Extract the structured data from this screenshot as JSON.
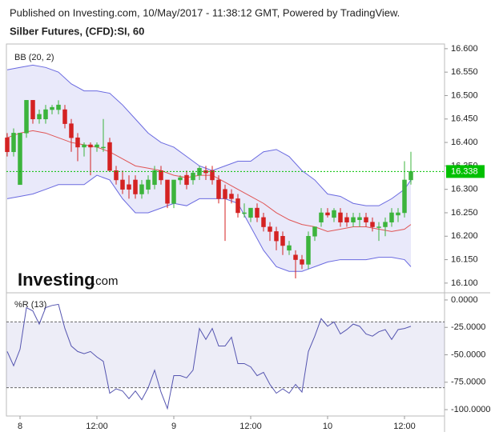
{
  "header": {
    "published": "Published on Investing.com, 10/May/2017 - 11:38:12 GMT, Powered by TradingView.",
    "symbol": "Silber Futures, (CFD):SI, 60"
  },
  "watermark": {
    "brand": "Investing",
    "suffix": ".com"
  },
  "chart_data": [
    {
      "type": "candlestick",
      "legend": "BB (20, 2)",
      "up_color": "#3cb43c",
      "down_color": "#d42222",
      "x": [
        -2,
        -1,
        0,
        1,
        2,
        3,
        4,
        5,
        6,
        7,
        8,
        9,
        10,
        11,
        12,
        13,
        14,
        15,
        16,
        17,
        18,
        19,
        20,
        21,
        22,
        23,
        24,
        25,
        26,
        27,
        28,
        29,
        30,
        31,
        32,
        33,
        34,
        35,
        36,
        37,
        38,
        39,
        40,
        41,
        42,
        43,
        44,
        45,
        46,
        47,
        48,
        49,
        50,
        51,
        52,
        53,
        54,
        55,
        56,
        57,
        58,
        59,
        60,
        61
      ],
      "open": [
        16.41,
        16.38,
        16.31,
        16.42,
        16.49,
        16.45,
        16.45,
        16.47,
        16.47,
        16.47,
        16.44,
        16.41,
        16.39,
        16.395,
        16.39,
        16.39,
        16.4,
        16.34,
        16.32,
        16.31,
        16.32,
        16.29,
        16.3,
        16.31,
        16.34,
        16.32,
        16.27,
        16.32,
        16.33,
        16.32,
        16.33,
        16.34,
        16.34,
        16.32,
        16.3,
        16.29,
        16.28,
        16.25,
        16.24,
        16.26,
        16.24,
        16.22,
        16.21,
        16.2,
        16.17,
        16.16,
        16.15,
        16.14,
        16.2,
        16.23,
        16.25,
        16.24,
        16.25,
        16.24,
        16.23,
        16.235,
        16.24,
        16.23,
        16.22,
        16.22,
        16.23,
        16.245,
        16.25,
        16.32
      ],
      "high": [
        16.42,
        16.43,
        16.42,
        16.49,
        16.49,
        16.47,
        16.48,
        16.48,
        16.49,
        16.48,
        16.45,
        16.42,
        16.4,
        16.4,
        16.4,
        16.45,
        16.41,
        16.35,
        16.34,
        16.33,
        16.33,
        16.32,
        16.33,
        16.35,
        16.35,
        16.32,
        16.32,
        16.33,
        16.34,
        16.34,
        16.35,
        16.35,
        16.35,
        16.33,
        16.31,
        16.3,
        16.29,
        16.27,
        16.26,
        16.27,
        16.25,
        16.23,
        16.22,
        16.21,
        16.19,
        16.17,
        16.16,
        16.21,
        16.22,
        16.26,
        16.26,
        16.26,
        16.26,
        16.25,
        16.25,
        16.25,
        16.25,
        16.24,
        16.23,
        16.24,
        16.26,
        16.26,
        16.36,
        16.38
      ],
      "low": [
        16.37,
        16.37,
        16.31,
        16.41,
        16.44,
        16.44,
        16.44,
        16.46,
        16.46,
        16.43,
        16.38,
        16.36,
        16.37,
        16.33,
        16.38,
        16.38,
        16.34,
        16.31,
        16.29,
        16.28,
        16.28,
        16.28,
        16.29,
        16.3,
        16.31,
        16.26,
        16.26,
        16.31,
        16.3,
        16.31,
        16.32,
        16.32,
        16.31,
        16.27,
        16.19,
        16.27,
        16.24,
        16.24,
        16.23,
        16.23,
        16.21,
        16.19,
        16.17,
        16.16,
        16.16,
        16.11,
        16.13,
        16.13,
        16.19,
        16.22,
        16.24,
        16.23,
        16.22,
        16.22,
        16.22,
        16.22,
        16.22,
        16.21,
        16.19,
        16.2,
        16.22,
        16.23,
        16.24,
        16.31
      ],
      "close": [
        16.38,
        16.42,
        16.42,
        16.49,
        16.45,
        16.46,
        16.47,
        16.475,
        16.48,
        16.44,
        16.41,
        16.39,
        16.395,
        16.39,
        16.395,
        16.39,
        16.34,
        16.32,
        16.3,
        16.3,
        16.29,
        16.31,
        16.32,
        16.34,
        16.32,
        16.27,
        16.32,
        16.325,
        16.31,
        16.335,
        16.345,
        16.335,
        16.32,
        16.28,
        16.28,
        16.28,
        16.25,
        16.25,
        16.26,
        16.24,
        16.22,
        16.21,
        16.19,
        16.18,
        16.18,
        16.15,
        16.14,
        16.2,
        16.22,
        16.25,
        16.245,
        16.255,
        16.23,
        16.23,
        16.24,
        16.24,
        16.23,
        16.22,
        16.22,
        16.23,
        16.25,
        16.25,
        16.32,
        16.338
      ],
      "bands": {
        "x": [
          -2,
          0,
          2,
          4,
          6,
          8,
          10,
          12,
          14,
          16,
          18,
          20,
          22,
          24,
          26,
          28,
          30,
          32,
          34,
          36,
          38,
          40,
          42,
          44,
          46,
          48,
          50,
          52,
          54,
          56,
          58,
          60,
          61
        ],
        "upper": [
          16.555,
          16.56,
          16.565,
          16.56,
          16.55,
          16.525,
          16.51,
          16.51,
          16.505,
          16.48,
          16.45,
          16.42,
          16.4,
          16.39,
          16.37,
          16.35,
          16.34,
          16.35,
          16.36,
          16.36,
          16.38,
          16.385,
          16.37,
          16.34,
          16.32,
          16.29,
          16.285,
          16.27,
          16.265,
          16.265,
          16.28,
          16.3,
          16.32
        ],
        "middle": [
          16.41,
          16.42,
          16.425,
          16.42,
          16.41,
          16.4,
          16.395,
          16.39,
          16.38,
          16.365,
          16.35,
          16.345,
          16.34,
          16.33,
          16.325,
          16.33,
          16.33,
          16.315,
          16.3,
          16.285,
          16.27,
          16.25,
          16.235,
          16.225,
          16.22,
          16.21,
          16.215,
          16.22,
          16.22,
          16.215,
          16.21,
          16.215,
          16.225
        ],
        "lower": [
          16.28,
          16.285,
          16.29,
          16.3,
          16.31,
          16.31,
          16.31,
          16.33,
          16.32,
          16.28,
          16.25,
          16.25,
          16.26,
          16.27,
          16.265,
          16.28,
          16.28,
          16.28,
          16.27,
          16.22,
          16.17,
          16.135,
          16.125,
          16.125,
          16.135,
          16.145,
          16.15,
          16.15,
          16.15,
          16.155,
          16.155,
          16.15,
          16.135
        ],
        "band_color": "#6a6ae0",
        "middle_color": "#e05555"
      },
      "last_price": 16.338,
      "last_color": "#00c000",
      "xlim": [
        -2.125,
        66.25
      ],
      "ylim": [
        16.081,
        16.61
      ],
      "yticks": [
        {
          "value": 16.1,
          "label": "16.100"
        },
        {
          "value": 16.15,
          "label": "16.150"
        },
        {
          "value": 16.2,
          "label": "16.200"
        },
        {
          "value": 16.25,
          "label": "16.250"
        },
        {
          "value": 16.3,
          "label": "16.300"
        },
        {
          "value": 16.35,
          "label": "16.350"
        },
        {
          "value": 16.4,
          "label": "16.400"
        },
        {
          "value": 16.45,
          "label": "16.450"
        },
        {
          "value": 16.5,
          "label": "16.500"
        },
        {
          "value": 16.55,
          "label": "16.550"
        },
        {
          "value": 16.6,
          "label": "16.600"
        }
      ]
    },
    {
      "type": "line",
      "legend": "%R (13)",
      "color": "#5555b0",
      "x": [
        -2,
        -1,
        0,
        1,
        2,
        3,
        4,
        5,
        6,
        7,
        8,
        9,
        10,
        11,
        12,
        13,
        14,
        15,
        16,
        17,
        18,
        19,
        20,
        21,
        22,
        23,
        24,
        25,
        26,
        27,
        28,
        29,
        30,
        31,
        32,
        33,
        34,
        35,
        36,
        37,
        38,
        39,
        40,
        41,
        42,
        43,
        44,
        45,
        46,
        47,
        48,
        49,
        50,
        51,
        52,
        53,
        54,
        55,
        56,
        57,
        58,
        59,
        60,
        61
      ],
      "values": [
        -47,
        -60,
        -45,
        -7,
        -10,
        -22,
        -7,
        -5,
        -4,
        -26,
        -42,
        -47,
        -49,
        -47,
        -52,
        -56,
        -85,
        -81,
        -83,
        -90,
        -83,
        -91,
        -80,
        -64,
        -84,
        -99,
        -69,
        -69,
        -71,
        -64,
        -26,
        -36,
        -26,
        -42,
        -42,
        -34,
        -58,
        -58,
        -61,
        -69,
        -66,
        -77,
        -85,
        -81,
        -85,
        -77,
        -84,
        -47,
        -33,
        -17,
        -24,
        -20,
        -31,
        -27,
        -22,
        -24,
        -31,
        -33,
        -29,
        -27,
        -36,
        -27,
        -26,
        -24
      ],
      "levels": [
        -20,
        -80
      ],
      "xlim": [
        -2.125,
        66.25
      ],
      "xticks": [
        {
          "value": 0,
          "label": "8"
        },
        {
          "value": 12,
          "label": "12:00"
        },
        {
          "value": 24,
          "label": "9"
        },
        {
          "value": 36,
          "label": "12:00"
        },
        {
          "value": 48,
          "label": "10"
        },
        {
          "value": 60,
          "label": "12:00"
        }
      ],
      "ylim": [
        -105.8,
        5.8
      ],
      "yticks": [
        {
          "value": 0,
          "label": "0.0000"
        },
        {
          "value": -25,
          "label": "-25.0000"
        },
        {
          "value": -50,
          "label": "-50.0000"
        },
        {
          "value": -75,
          "label": "-75.0000"
        },
        {
          "value": -100,
          "label": "-100.0000"
        }
      ]
    }
  ]
}
